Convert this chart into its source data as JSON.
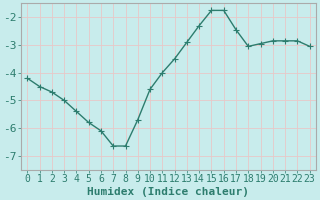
{
  "x": [
    0,
    1,
    2,
    3,
    4,
    5,
    6,
    7,
    8,
    9,
    10,
    11,
    12,
    13,
    14,
    15,
    16,
    17,
    18,
    19,
    20,
    21,
    22,
    23
  ],
  "y": [
    -4.2,
    -4.5,
    -4.7,
    -5.0,
    -5.4,
    -5.8,
    -6.1,
    -6.65,
    -6.65,
    -5.7,
    -4.6,
    -4.0,
    -3.5,
    -2.9,
    -2.3,
    -1.75,
    -1.75,
    -2.45,
    -3.05,
    -2.95,
    -2.85,
    -2.85,
    -2.85,
    -3.05
  ],
  "line_color": "#2d7d6e",
  "bg_color": "#c8ecec",
  "grid_color": "#e8c8c8",
  "spine_color": "#aaaaaa",
  "xlabel": "Humidex (Indice chaleur)",
  "ylim": [
    -7.5,
    -1.5
  ],
  "xlim": [
    -0.5,
    23.5
  ],
  "yticks": [
    -7,
    -6,
    -5,
    -4,
    -3,
    -2
  ],
  "xticks": [
    0,
    1,
    2,
    3,
    4,
    5,
    6,
    7,
    8,
    9,
    10,
    11,
    12,
    13,
    14,
    15,
    16,
    17,
    18,
    19,
    20,
    21,
    22,
    23
  ],
  "xtick_labels": [
    "0",
    "1",
    "2",
    "3",
    "4",
    "5",
    "6",
    "7",
    "8",
    "9",
    "10",
    "11",
    "12",
    "13",
    "14",
    "15",
    "16",
    "17",
    "18",
    "19",
    "20",
    "21",
    "22",
    "23"
  ],
  "marker": "+",
  "marker_size": 4,
  "line_width": 1.0,
  "tick_fontsize": 7,
  "xlabel_fontsize": 8,
  "label_color": "#2d7d6e"
}
